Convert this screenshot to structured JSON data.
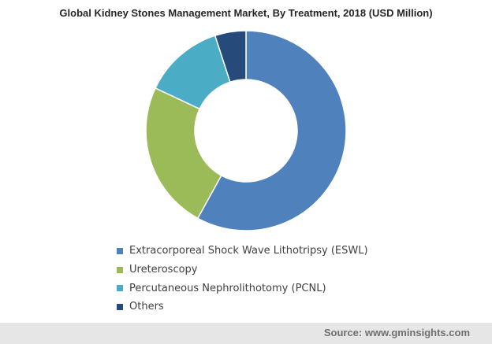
{
  "chart_data": {
    "type": "pie",
    "title": "Global Kidney Stones Management Market, By Treatment, 2018 (USD Million)",
    "categories": [
      "Extracorporeal Shock Wave Lithotripsy (ESWL)",
      "Ureteroscopy",
      "Percutaneous Nephrolithotomy (PCNL)",
      "Others"
    ],
    "values": [
      58,
      24,
      13,
      5
    ],
    "colors": [
      "#4f81bd",
      "#9bbb59",
      "#4bacc6",
      "#264a7a"
    ],
    "donut": true,
    "legend": "bottom"
  },
  "source": "Source: www.gminsights.com"
}
